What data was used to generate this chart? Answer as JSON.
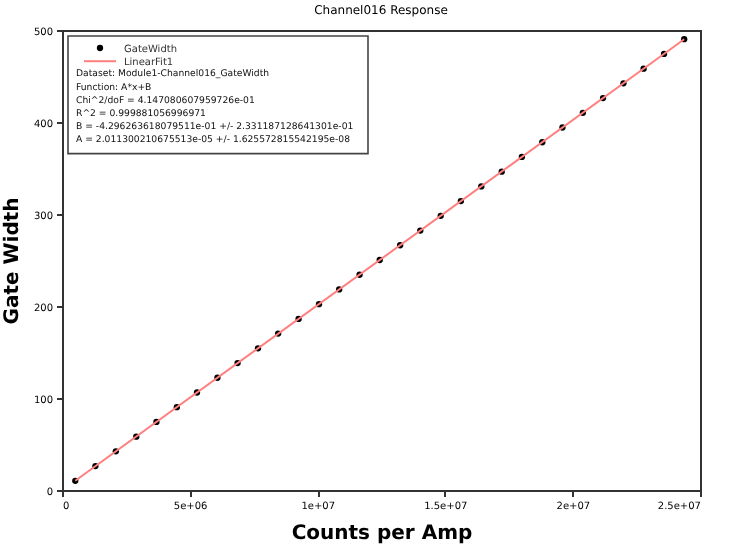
{
  "chart_data": {
    "type": "scatter",
    "title": "Channel016 Response",
    "xlabel": "Counts per Amp",
    "ylabel": "Gate Width",
    "x": [
      520000,
      1310000,
      2110000,
      2910000,
      3700000,
      4500000,
      5290000,
      6090000,
      6880000,
      7680000,
      8470000,
      9270000,
      10070000,
      10860000,
      11660000,
      12450000,
      13250000,
      14040000,
      14840000,
      15630000,
      16430000,
      17230000,
      18020000,
      18820000,
      19610000,
      20410000,
      21200000,
      22000000,
      22790000,
      23590000,
      24380000
    ],
    "series": [
      {
        "name": "GateWidth",
        "type": "scatter",
        "color": "#000000",
        "marker": "circle",
        "values": [
          10,
          26,
          42,
          58,
          74,
          90,
          106,
          122,
          138,
          154,
          170,
          186,
          202,
          218,
          234,
          250,
          266,
          282,
          298,
          314,
          330,
          346,
          362,
          378,
          394,
          410,
          426,
          442,
          458,
          474,
          490
        ]
      },
      {
        "name": "LinearFit1",
        "type": "line",
        "color": "#ff7f7f",
        "line_style": "solid",
        "x": [
          520000,
          24380000
        ],
        "values": [
          10,
          490
        ]
      }
    ],
    "annotations": [
      "Dataset: Module1-Channel016_GateWidth",
      "Function: A*x+B",
      "Chi^2/doF = 4.147080607959726e-01",
      "R^2 = 0.999881056996971",
      "B = -4.296263618079511e-01 +/- 2.331187128641301e-01",
      "A = 2.011300210675513e-05 +/- 1.625572815542195e-08"
    ],
    "xlim": [
      0,
      25000000
    ],
    "ylim": [
      0,
      500
    ],
    "xticks": [
      0,
      {
        "value": 5000000,
        "label": "5e+06"
      },
      {
        "value": 10000000,
        "label": "1e+07"
      },
      {
        "value": 15000000,
        "label": "1.5e+07"
      },
      {
        "value": 20000000,
        "label": "2e+07"
      },
      {
        "value": 25000000,
        "label": "2.5e+07"
      }
    ],
    "yticks": [
      0,
      100,
      200,
      300,
      400,
      500
    ],
    "grid": false,
    "legend": "top left"
  }
}
